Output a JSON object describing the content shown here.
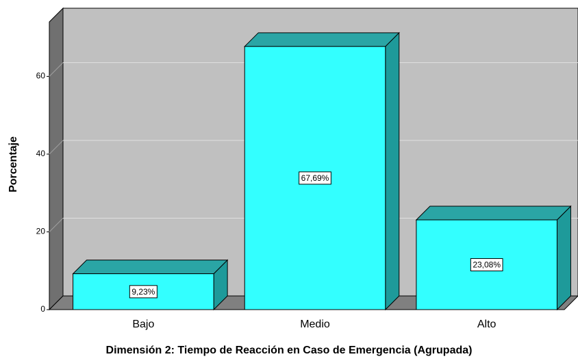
{
  "chart_data": {
    "type": "bar3d",
    "x_label": "Dimensión 2: Tiempo de Reacción en Caso de Emergencia (Agrupada)",
    "y_label": "Porcentaje",
    "categories": [
      "Bajo",
      "Medio",
      "Alto"
    ],
    "values": [
      9.23,
      67.69,
      23.08
    ],
    "value_labels": [
      "9,23%",
      "67,69%",
      "23,08%"
    ],
    "color": "#33ffff",
    "ylim": [
      0,
      74
    ],
    "yticks": [
      0,
      20,
      40,
      60
    ],
    "grid": true
  }
}
